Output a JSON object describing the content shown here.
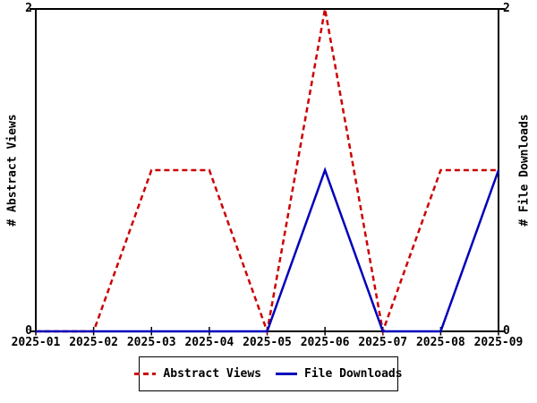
{
  "chart_data": {
    "type": "line",
    "x": [
      "2025-01",
      "2025-02",
      "2025-03",
      "2025-04",
      "2025-05",
      "2025-06",
      "2025-07",
      "2025-08",
      "2025-09"
    ],
    "series": [
      {
        "name": "Abstract Views",
        "values": [
          0,
          0,
          1,
          1,
          0,
          2,
          0,
          1,
          1
        ],
        "color": "#cc0000",
        "line_style": "dashed",
        "axis": "left"
      },
      {
        "name": "File Downloads",
        "values": [
          0,
          0,
          0,
          0,
          0,
          1,
          0,
          0,
          1
        ],
        "color": "#0000bb",
        "line_style": "solid",
        "axis": "right"
      }
    ],
    "ylabel_left": "# Abstract Views",
    "ylabel_right": "# File Downloads",
    "ylim": [
      0,
      2
    ],
    "yticks": [
      0,
      2
    ],
    "grid": false,
    "legend_position": "bottom-center",
    "colors": {
      "axis": "#000000",
      "background": "#ffffff"
    }
  }
}
